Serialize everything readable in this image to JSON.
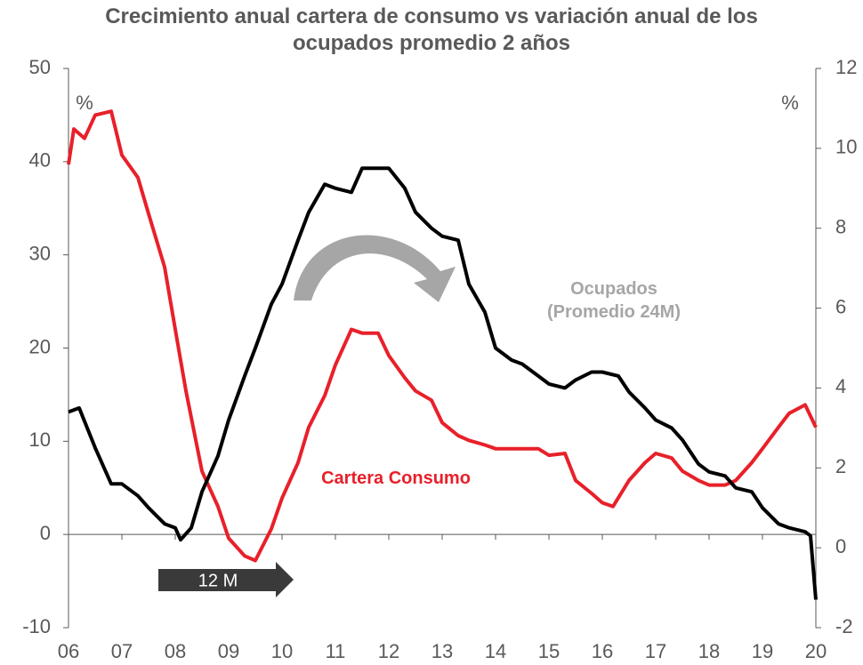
{
  "chart_data": {
    "type": "line",
    "title": "Crecimiento anual cartera de consumo vs variación anual de los ocupados promedio 2 años",
    "annotations": [
      "%",
      "%",
      "12 M"
    ],
    "xlim": [
      2006,
      2020
    ],
    "xticks": [
      {
        "value": 2006,
        "label": "06"
      },
      {
        "value": 2007,
        "label": "07"
      },
      {
        "value": 2008,
        "label": "08"
      },
      {
        "value": 2009,
        "label": "09"
      },
      {
        "value": 2010,
        "label": "10"
      },
      {
        "value": 2011,
        "label": "11"
      },
      {
        "value": 2012,
        "label": "12"
      },
      {
        "value": 2013,
        "label": "13"
      },
      {
        "value": 2014,
        "label": "14"
      },
      {
        "value": 2015,
        "label": "15"
      },
      {
        "value": 2016,
        "label": "16"
      },
      {
        "value": 2017,
        "label": "17"
      },
      {
        "value": 2018,
        "label": "18"
      },
      {
        "value": 2019,
        "label": "19"
      },
      {
        "value": 2020,
        "label": "20"
      }
    ],
    "ylim": [
      -10,
      50
    ],
    "yticks": [
      -10,
      0,
      10,
      20,
      30,
      40,
      50
    ],
    "y2lim": [
      -2,
      12
    ],
    "y2ticks": [
      -2,
      0,
      2,
      4,
      6,
      8,
      10,
      12
    ],
    "grid": false,
    "series": [
      {
        "name": "Cartera Consumo",
        "color": "#e8202a",
        "axis": "y",
        "x": [
          2006.0,
          2006.1,
          2006.3,
          2006.5,
          2006.8,
          2007.0,
          2007.3,
          2007.5,
          2007.8,
          2008.0,
          2008.2,
          2008.5,
          2008.8,
          2009.0,
          2009.3,
          2009.5,
          2009.8,
          2010.0,
          2010.3,
          2010.5,
          2010.8,
          2011.0,
          2011.3,
          2011.5,
          2011.8,
          2012.0,
          2012.3,
          2012.5,
          2012.8,
          2013.0,
          2013.3,
          2013.5,
          2013.8,
          2014.0,
          2014.3,
          2014.5,
          2014.8,
          2015.0,
          2015.3,
          2015.5,
          2015.8,
          2016.0,
          2016.2,
          2016.5,
          2016.8,
          2017.0,
          2017.3,
          2017.5,
          2017.8,
          2018.0,
          2018.3,
          2018.5,
          2018.8,
          2019.0,
          2019.3,
          2019.5,
          2019.8,
          2020.0
        ],
        "values": [
          39.7,
          43.5,
          42.5,
          45,
          45.4,
          40.7,
          38.3,
          34.4,
          28.7,
          22,
          15.4,
          6.8,
          3,
          -0.4,
          -2.3,
          -2.8,
          0.6,
          3.9,
          7.7,
          11.5,
          14.9,
          18.2,
          22,
          21.6,
          21.6,
          19.2,
          16.8,
          15.4,
          14.4,
          12,
          10.6,
          10.1,
          9.6,
          9.2,
          9.2,
          9.2,
          9.2,
          8.5,
          8.7,
          5.8,
          4.4,
          3.4,
          3,
          5.8,
          7.7,
          8.7,
          8.2,
          6.8,
          5.8,
          5.3,
          5.3,
          5.8,
          7.7,
          9.2,
          11.5,
          13,
          13.9,
          11.5
        ]
      },
      {
        "name": "Ocupados (Promedio 24M)",
        "color": "#000000",
        "axis": "y2",
        "x": [
          2006.0,
          2006.2,
          2006.5,
          2006.8,
          2007.0,
          2007.3,
          2007.5,
          2007.8,
          2008.0,
          2008.1,
          2008.3,
          2008.5,
          2008.8,
          2009.0,
          2009.3,
          2009.5,
          2009.8,
          2010.0,
          2010.3,
          2010.5,
          2010.8,
          2011.0,
          2011.3,
          2011.5,
          2011.8,
          2012.0,
          2012.3,
          2012.5,
          2012.8,
          2013.0,
          2013.3,
          2013.5,
          2013.8,
          2014.0,
          2014.3,
          2014.5,
          2014.8,
          2015.0,
          2015.3,
          2015.5,
          2015.8,
          2016.0,
          2016.3,
          2016.5,
          2016.8,
          2017.0,
          2017.3,
          2017.5,
          2017.8,
          2018.0,
          2018.3,
          2018.5,
          2018.8,
          2019.0,
          2019.3,
          2019.5,
          2019.8,
          2019.9,
          2020.0
        ],
        "values": [
          3.4,
          3.5,
          2.5,
          1.6,
          1.6,
          1.3,
          1,
          0.6,
          0.5,
          0.2,
          0.5,
          1.4,
          2.3,
          3.2,
          4.3,
          5,
          6.1,
          6.6,
          7.7,
          8.4,
          9.1,
          9,
          8.9,
          9.5,
          9.5,
          9.5,
          9,
          8.4,
          8,
          7.8,
          7.7,
          6.6,
          5.9,
          5,
          4.7,
          4.6,
          4.3,
          4.1,
          4,
          4.2,
          4.4,
          4.4,
          4.3,
          3.9,
          3.5,
          3.2,
          3,
          2.7,
          2.1,
          1.9,
          1.8,
          1.5,
          1.4,
          1,
          0.6,
          0.5,
          0.4,
          0.3,
          -1.3
        ]
      }
    ]
  }
}
